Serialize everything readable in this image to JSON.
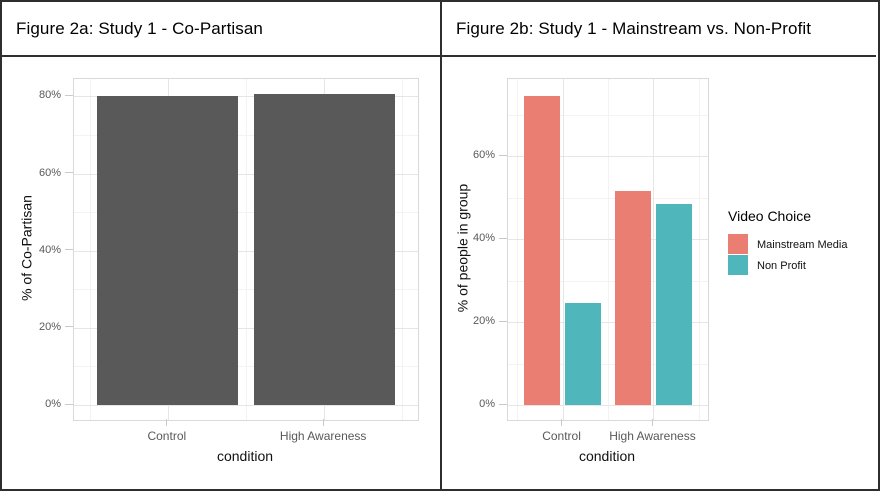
{
  "panels": [
    {
      "title": "Figure 2a: Study 1 - Co-Partisan"
    },
    {
      "title": "Figure 2b: Study 1 - Mainstream vs. Non-Profit"
    }
  ],
  "colors": {
    "frame_border": "#2e2e2e",
    "bar_gray": "#595959",
    "mainstream_salmon": "#EB7E72",
    "nonprofit_teal": "#4FB6BC",
    "grid_major": "#e6e6e6",
    "grid_minor": "#f3f3f3",
    "axis_text_gray": "#595959"
  },
  "chart_data": [
    {
      "type": "bar",
      "title": "Figure 2a: Study 1 - Co-Partisan",
      "categories": [
        "Control",
        "High Awareness"
      ],
      "values": [
        80.2,
        80.5
      ],
      "bar_color": "#595959",
      "xlabel": "condition",
      "ylabel": "% of Co-Partisan",
      "ylim": [
        0,
        84.5
      ],
      "y_ticks": [
        0,
        20,
        40,
        60,
        80
      ],
      "tick_suffix": "%",
      "grid": true,
      "legend": false
    },
    {
      "type": "bar",
      "title": "Figure 2b: Study 1 - Mainstream vs. Non-Profit",
      "categories": [
        "Control",
        "High Awareness"
      ],
      "series": [
        {
          "name": "Mainstream Media",
          "color": "#EB7E72",
          "values": [
            74.6,
            51.6
          ]
        },
        {
          "name": "Non Profit",
          "color": "#4FB6BC",
          "values": [
            24.6,
            48.4
          ]
        }
      ],
      "legend_title": "Video Choice",
      "xlabel": "condition",
      "ylabel": "% of people in group",
      "ylim": [
        0,
        78.6
      ],
      "y_ticks": [
        0,
        20,
        40,
        60
      ],
      "tick_suffix": "%",
      "grid": true,
      "legend": true,
      "legend_position": "right"
    }
  ]
}
